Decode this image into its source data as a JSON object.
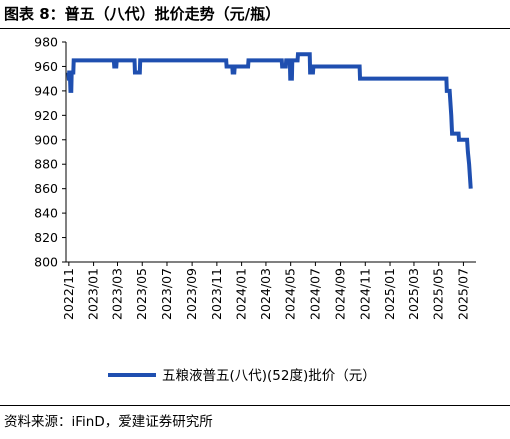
{
  "title": "图表 8：普五（八代）批价走势（元/瓶）",
  "source": "资料来源：iFinD，爱建证券研究所",
  "colors": {
    "series": "#1f4fb0",
    "axis": "#000000"
  },
  "chart_data": {
    "type": "line",
    "title": "图表 8：普五（八代）批价走势（元/瓶）",
    "xlabel": "",
    "ylabel": "",
    "ylim": [
      800,
      980
    ],
    "yticks": [
      800,
      820,
      840,
      860,
      880,
      900,
      920,
      940,
      960,
      980
    ],
    "xlim": [
      "2022-10-25",
      "2025-08-01"
    ],
    "xtick_dates": [
      "2022-11-01",
      "2023-01-01",
      "2023-03-01",
      "2023-05-01",
      "2023-07-01",
      "2023-09-01",
      "2023-11-01",
      "2024-01-01",
      "2024-03-01",
      "2024-05-01",
      "2024-07-01",
      "2024-09-01",
      "2024-11-01",
      "2025-01-01",
      "2025-03-01",
      "2025-05-01",
      "2025-07-01"
    ],
    "xtick_labels": [
      "2022/11",
      "2023/01",
      "2023/03",
      "2023/05",
      "2023/07",
      "2023/09",
      "2023/11",
      "2024/01",
      "2024/03",
      "2024/05",
      "2024/07",
      "2024/09",
      "2024/11",
      "2025/01",
      "2025/03",
      "2025/05",
      "2025/07"
    ],
    "grid": false,
    "legend_position": "bottom",
    "series": [
      {
        "name": "五粮液普五(八代)(52度)批价（元）",
        "points": [
          [
            "2022-10-28",
            955
          ],
          [
            "2022-10-31",
            955
          ],
          [
            "2022-11-01",
            950
          ],
          [
            "2022-11-04",
            950
          ],
          [
            "2022-11-05",
            940
          ],
          [
            "2022-11-07",
            940
          ],
          [
            "2022-11-08",
            955
          ],
          [
            "2022-11-12",
            955
          ],
          [
            "2022-11-13",
            965
          ],
          [
            "2023-02-20",
            965
          ],
          [
            "2023-02-21",
            960
          ],
          [
            "2023-02-26",
            960
          ],
          [
            "2023-02-27",
            965
          ],
          [
            "2023-04-12",
            965
          ],
          [
            "2023-04-13",
            955
          ],
          [
            "2023-04-25",
            955
          ],
          [
            "2023-04-26",
            965
          ],
          [
            "2023-11-24",
            965
          ],
          [
            "2023-11-25",
            960
          ],
          [
            "2023-12-09",
            960
          ],
          [
            "2023-12-10",
            955
          ],
          [
            "2023-12-14",
            955
          ],
          [
            "2023-12-15",
            960
          ],
          [
            "2024-01-17",
            960
          ],
          [
            "2024-01-18",
            965
          ],
          [
            "2024-04-09",
            965
          ],
          [
            "2024-04-10",
            960
          ],
          [
            "2024-04-19",
            960
          ],
          [
            "2024-04-20",
            965
          ],
          [
            "2024-04-29",
            965
          ],
          [
            "2024-04-30",
            950
          ],
          [
            "2024-05-04",
            950
          ],
          [
            "2024-05-05",
            965
          ],
          [
            "2024-05-18",
            965
          ],
          [
            "2024-05-19",
            970
          ],
          [
            "2024-06-17",
            970
          ],
          [
            "2024-06-18",
            955
          ],
          [
            "2024-06-25",
            955
          ],
          [
            "2024-06-26",
            960
          ],
          [
            "2024-10-18",
            960
          ],
          [
            "2024-10-19",
            950
          ],
          [
            "2025-05-20",
            950
          ],
          [
            "2025-05-21",
            940
          ],
          [
            "2025-05-28",
            940
          ],
          [
            "2025-06-01",
            920
          ],
          [
            "2025-06-03",
            905
          ],
          [
            "2025-06-19",
            905
          ],
          [
            "2025-06-20",
            900
          ],
          [
            "2025-07-10",
            900
          ],
          [
            "2025-07-12",
            890
          ],
          [
            "2025-07-15",
            880
          ],
          [
            "2025-07-17",
            870
          ],
          [
            "2025-07-19",
            860
          ]
        ]
      }
    ]
  }
}
